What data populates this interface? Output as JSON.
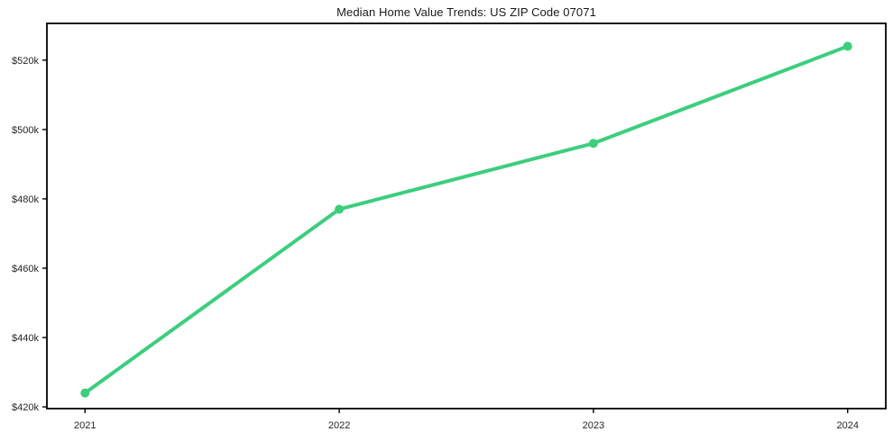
{
  "page": {
    "title": "Median Home Value Trends: US ZIP Code 07071"
  },
  "chart_data": {
    "type": "line",
    "title": "Median Home Value Trends: US ZIP Code 07071",
    "xlabel": "",
    "ylabel": "",
    "unit": "USD thousands",
    "categories": [
      2021,
      2022,
      2023,
      2024
    ],
    "x_tick_labels": [
      "2021",
      "2022",
      "2023",
      "2024"
    ],
    "series": [
      {
        "name": "Median Home Value",
        "values": [
          424,
          477,
          496,
          524
        ],
        "color": "#3cce7d"
      }
    ],
    "y_ticks": [
      420,
      440,
      460,
      480,
      500,
      520
    ],
    "y_tick_labels": [
      "$420k",
      "$440k",
      "$460k",
      "$480k",
      "$500k",
      "$520k"
    ],
    "xlim": [
      2020.85,
      2024.15
    ],
    "ylim": [
      419.5,
      530.6
    ],
    "grid": false,
    "legend_position": "none",
    "line_width": 4,
    "marker_radius": 5,
    "colors": {
      "line": "#3cce7d",
      "text": "#262626",
      "axis": "#000000",
      "background": "#ffffff"
    }
  }
}
